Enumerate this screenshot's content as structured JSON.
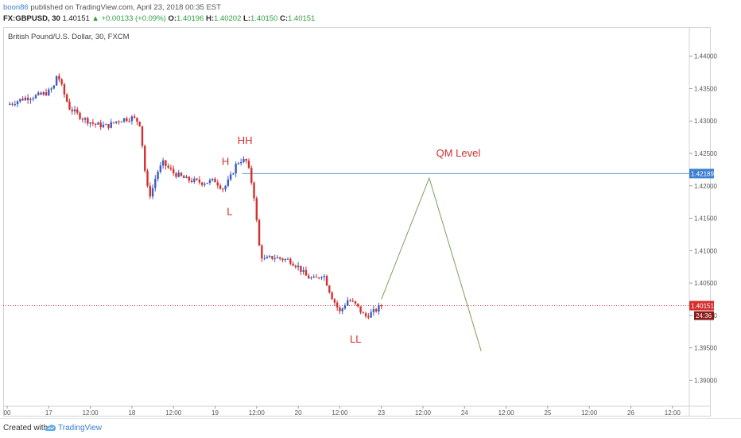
{
  "header": {
    "author": "boon86",
    "published_text": "published on TradingView.com, April 23, 2018 00:35 EST",
    "symbol": "FX:GBPUSD, 30",
    "last_price": "1.40151",
    "change": "▲ +0.00133 (+0.09%)",
    "o_label": "O:",
    "o_value": "1.40196",
    "h_label": "H:",
    "h_value": "1.40202",
    "l_label": "L:",
    "l_value": "1.40150",
    "c_label": "C:",
    "c_value": "1.40151"
  },
  "footer": {
    "created_with": "Created with",
    "brand": "TradingView"
  },
  "colors": {
    "up_candle": "#3b5cc4",
    "down_candle": "#d32f2f",
    "qm_line": "#5b9bd5",
    "price_line": "#d32f2f",
    "projection": "#7aa05a",
    "annotation": "#d32f2f",
    "axis_text": "#555555"
  },
  "chart_data": {
    "type": "candlestick",
    "title": "British Pound/U.S. Dollar, 30, FXCM",
    "ylim": [
      1.386,
      1.4445
    ],
    "y_ticks": [
      1.44,
      1.435,
      1.43,
      1.425,
      1.42,
      1.415,
      1.41,
      1.405,
      1.4,
      1.395,
      1.39
    ],
    "y_tick_labels": [
      "1.44000",
      "1.43500",
      "1.43000",
      "1.42500",
      "1.42000",
      "1.41500",
      "1.41000",
      "1.40500",
      "1.40000",
      "1.39500",
      "1.39000"
    ],
    "x_ticks": [
      {
        "pos": 0,
        "label": "00"
      },
      {
        "pos": 1,
        "label": "17"
      },
      {
        "pos": 2,
        "label": "12:00"
      },
      {
        "pos": 3,
        "label": "18"
      },
      {
        "pos": 4,
        "label": "12:00"
      },
      {
        "pos": 5,
        "label": "19"
      },
      {
        "pos": 6,
        "label": "12:00"
      },
      {
        "pos": 7,
        "label": "20"
      },
      {
        "pos": 8,
        "label": "12:00"
      },
      {
        "pos": 9,
        "label": "23"
      },
      {
        "pos": 10,
        "label": "12:00"
      },
      {
        "pos": 11,
        "label": "24"
      },
      {
        "pos": 12,
        "label": "12:00"
      },
      {
        "pos": 13,
        "label": "25"
      },
      {
        "pos": 14,
        "label": "12:00"
      },
      {
        "pos": 15,
        "label": "26"
      },
      {
        "pos": 16,
        "label": "12:00"
      }
    ],
    "price_path": [
      [
        0.0,
        1.4325
      ],
      [
        0.4,
        1.4335
      ],
      [
        0.8,
        1.434
      ],
      [
        1.0,
        1.4345
      ],
      [
        1.15,
        1.4355
      ],
      [
        1.2,
        1.4375
      ],
      [
        1.35,
        1.4345
      ],
      [
        1.5,
        1.432
      ],
      [
        1.8,
        1.4305
      ],
      [
        2.1,
        1.4295
      ],
      [
        2.4,
        1.4292
      ],
      [
        2.7,
        1.4302
      ],
      [
        3.0,
        1.4305
      ],
      [
        3.1,
        1.4302
      ],
      [
        3.2,
        1.4295
      ],
      [
        3.35,
        1.42
      ],
      [
        3.45,
        1.4185
      ],
      [
        3.6,
        1.422
      ],
      [
        3.75,
        1.4235
      ],
      [
        4.0,
        1.422
      ],
      [
        4.3,
        1.421
      ],
      [
        4.7,
        1.4205
      ],
      [
        5.0,
        1.4208
      ],
      [
        5.2,
        1.4195
      ],
      [
        5.35,
        1.421
      ],
      [
        5.5,
        1.4232
      ],
      [
        5.6,
        1.424
      ],
      [
        5.75,
        1.4238
      ],
      [
        5.85,
        1.4215
      ],
      [
        5.95,
        1.418
      ],
      [
        6.05,
        1.411
      ],
      [
        6.15,
        1.4085
      ],
      [
        6.4,
        1.409
      ],
      [
        6.8,
        1.4085
      ],
      [
        7.0,
        1.4075
      ],
      [
        7.2,
        1.406
      ],
      [
        7.4,
        1.4055
      ],
      [
        7.6,
        1.4065
      ],
      [
        7.8,
        1.403
      ],
      [
        8.0,
        1.4005
      ],
      [
        8.2,
        1.4025
      ],
      [
        8.4,
        1.4015
      ],
      [
        8.6,
        1.3998
      ],
      [
        8.8,
        1.4005
      ],
      [
        9.0,
        1.4015
      ]
    ],
    "current_price": 1.40151,
    "current_price_label": "1.40151",
    "countdown": "24:36",
    "qm_level": 1.42189,
    "qm_level_label": "1.42189",
    "projection": [
      [
        9.0,
        1.4025
      ],
      [
        10.15,
        1.4212
      ],
      [
        11.4,
        1.3945
      ]
    ],
    "annotations": [
      {
        "text": "HH",
        "x": 5.72,
        "y": 1.4265
      },
      {
        "text": "H",
        "x": 5.25,
        "y": 1.4232
      },
      {
        "text": "L",
        "x": 5.35,
        "y": 1.4155
      },
      {
        "text": "LL",
        "x": 8.38,
        "y": 1.3958
      },
      {
        "text": "QM Level",
        "x": 10.85,
        "y": 1.4245
      }
    ]
  }
}
